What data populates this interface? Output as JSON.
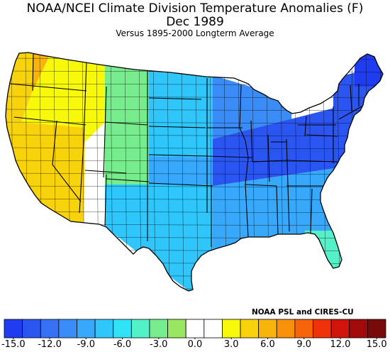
{
  "title": "NOAA/NCEI Climate Division Temperature Anomalies (F)",
  "period": "Dec 1989",
  "subtitle": "Versus 1895-2000 Longterm Average",
  "credit": "NOAA PSL and CIRES-CU",
  "legend": {
    "colors": [
      "#1f3cf0",
      "#2b55f0",
      "#3570f5",
      "#3a8cf8",
      "#37a8fa",
      "#2ec6fb",
      "#2fe2f8",
      "#54f0c8",
      "#76ec8c",
      "#99e760",
      "#ffffff",
      "#ffffff",
      "#f8f80a",
      "#f8d20a",
      "#f8b40a",
      "#f8900a",
      "#f8640a",
      "#f0320a",
      "#d0140a",
      "#a00a0a",
      "#780a0a"
    ],
    "tick_labels": [
      "-15.0",
      "-12.0",
      "-9.0",
      "-6.0",
      "-3.0",
      "0.0",
      "3.0",
      "6.0",
      "9.0",
      "12.0",
      "15.0"
    ]
  },
  "anomaly_regions": [
    {
      "region": "Pacific Northwest coast",
      "anomaly_f": 4.5
    },
    {
      "region": "Washington Cascades",
      "anomaly_f": 6.0
    },
    {
      "region": "Oregon / Idaho",
      "anomaly_f": 3.5
    },
    {
      "region": "California / Nevada",
      "anomaly_f": 4.5
    },
    {
      "region": "Montana / Wyoming",
      "anomaly_f": -3.0
    },
    {
      "region": "Northern Plains",
      "anomaly_f": -7.0
    },
    {
      "region": "Central Plains",
      "anomaly_f": -8.5
    },
    {
      "region": "Southern Plains / Texas",
      "anomaly_f": -8.0
    },
    {
      "region": "Upper Midwest / Great Lakes",
      "anomaly_f": -10.0
    },
    {
      "region": "Ohio Valley",
      "anomaly_f": -13.5
    },
    {
      "region": "Northeast",
      "anomaly_f": -13.0
    },
    {
      "region": "Maine",
      "anomaly_f": -14.5
    },
    {
      "region": "Southeast",
      "anomaly_f": -9.5
    },
    {
      "region": "Florida",
      "anomaly_f": -5.0
    }
  ]
}
